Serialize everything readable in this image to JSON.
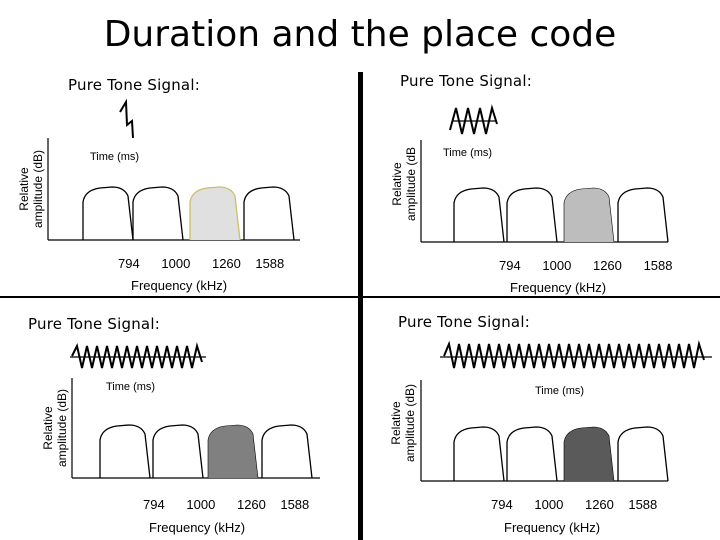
{
  "title": "Duration and the place code",
  "panels": [
    {
      "signal_label": "Pure Tone Signal:",
      "time_label": "Time (ms)",
      "y_label_line1": "Relative",
      "y_label_line2": "amplitude (dB)",
      "x_label": "Frequency (kHz)",
      "ticks": [
        "794",
        "1000",
        "1260",
        "1588"
      ],
      "highlight_fill": "#e0e0e0"
    },
    {
      "signal_label": "Pure Tone Signal:",
      "time_label": "Time (ms)",
      "y_label_line1": "Relative",
      "y_label_line2": "amplitude (dB",
      "x_label": "Frequency (kHz)",
      "ticks": [
        "794",
        "1000",
        "1260",
        "1588"
      ],
      "highlight_fill": "#bdbdbd"
    },
    {
      "signal_label": "Pure Tone Signal:",
      "time_label": "Time (ms)",
      "y_label_line1": "Relative",
      "y_label_line2": "amplitude (dB)",
      "x_label": "Frequency (kHz)",
      "ticks": [
        "794",
        "1000",
        "1260",
        "1588"
      ],
      "highlight_fill": "#808080"
    },
    {
      "signal_label": "Pure Tone Signal:",
      "time_label": "Time (ms)",
      "y_label_line1": "Relative",
      "y_label_line2": "amplitude (dB)",
      "x_label": "Frequency (kHz)",
      "ticks": [
        "794",
        "1000",
        "1260",
        "1588"
      ],
      "highlight_fill": "#5a5a5a"
    }
  ]
}
